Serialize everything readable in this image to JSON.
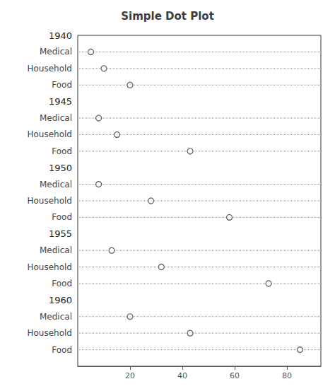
{
  "chart_data": {
    "type": "dot",
    "title": "Simple Dot Plot",
    "categories": [
      "1940",
      "1945",
      "1950",
      "1955",
      "1960"
    ],
    "subcategories": [
      "Medical",
      "Household",
      "Food"
    ],
    "values": [
      [
        5,
        10,
        20
      ],
      [
        8,
        15,
        43
      ],
      [
        8,
        28,
        58
      ],
      [
        13,
        32,
        73
      ],
      [
        20,
        43,
        85
      ]
    ],
    "xlim": [
      0,
      93
    ],
    "xticks": [
      20,
      40,
      60,
      80
    ],
    "grid": true,
    "color": "#333333",
    "marker": "circle"
  }
}
